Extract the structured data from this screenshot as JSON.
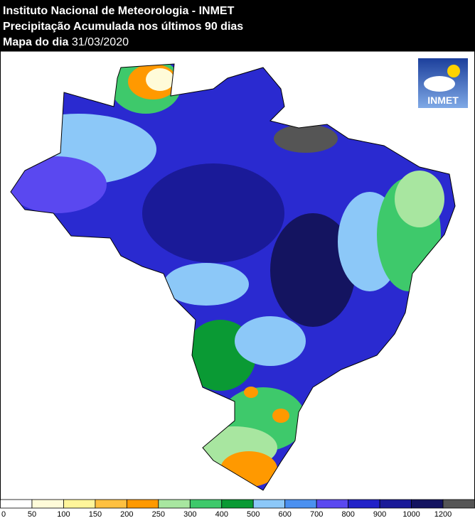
{
  "header": {
    "title": "Instituto Nacional de Meteorologia - INMET",
    "subtitle": "Precipitação Acumulada nos últimos 90 dias",
    "date_label": "Mapa do dia",
    "date": "31/03/2020"
  },
  "logo": {
    "text": "INMET"
  },
  "legend": {
    "ticks": [
      0,
      50,
      100,
      150,
      200,
      250,
      300,
      400,
      500,
      600,
      700,
      800,
      900,
      1000,
      1200
    ],
    "colors": [
      "#ffffff",
      "#fffbd9",
      "#fff59a",
      "#ffc040",
      "#ff9900",
      "#a8e6a0",
      "#3ec96b",
      "#0a9a34",
      "#8cc8f8",
      "#4a90f0",
      "#5a48f0",
      "#2222c8",
      "#1a1a98",
      "#141460",
      "#555555"
    ]
  }
}
